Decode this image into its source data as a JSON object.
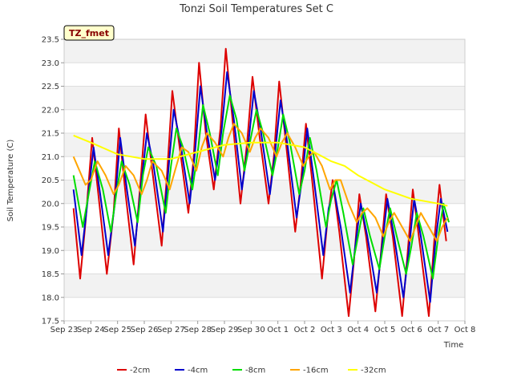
{
  "chart_data": {
    "type": "line",
    "title": "Tonzi Soil Temperatures Set C",
    "xlabel": "Time",
    "ylabel": "Soil Temperature (C)",
    "tag": "TZ_fmet",
    "ylim": [
      17.5,
      23.5
    ],
    "xlim": [
      0,
      15
    ],
    "x_ticks": [
      {
        "pos": 0,
        "label": "Sep 23"
      },
      {
        "pos": 1,
        "label": "Sep 24"
      },
      {
        "pos": 2,
        "label": "Sep 25"
      },
      {
        "pos": 3,
        "label": "Sep 26"
      },
      {
        "pos": 4,
        "label": "Sep 27"
      },
      {
        "pos": 5,
        "label": "Sep 28"
      },
      {
        "pos": 6,
        "label": "Sep 29"
      },
      {
        "pos": 7,
        "label": "Sep 30"
      },
      {
        "pos": 8,
        "label": "Oct 1"
      },
      {
        "pos": 9,
        "label": "Oct 2"
      },
      {
        "pos": 10,
        "label": "Oct 3"
      },
      {
        "pos": 11,
        "label": "Oct 4"
      },
      {
        "pos": 12,
        "label": "Oct 5"
      },
      {
        "pos": 13,
        "label": "Oct 6"
      },
      {
        "pos": 14,
        "label": "Oct 7"
      },
      {
        "pos": 15,
        "label": "Oct 8"
      }
    ],
    "y_ticks": [
      17.5,
      18.0,
      18.5,
      19.0,
      19.5,
      20.0,
      20.5,
      21.0,
      21.5,
      22.0,
      22.5,
      23.0,
      23.5
    ],
    "grid": true,
    "legend_position": "bottom",
    "series": [
      {
        "name": "-2cm",
        "color": "#dd0000",
        "points": [
          [
            0.35,
            19.9
          ],
          [
            0.6,
            18.4
          ],
          [
            0.8,
            19.6
          ],
          [
            1.05,
            21.4
          ],
          [
            1.3,
            20.1
          ],
          [
            1.6,
            18.5
          ],
          [
            1.85,
            19.8
          ],
          [
            2.05,
            21.6
          ],
          [
            2.3,
            20.2
          ],
          [
            2.6,
            18.7
          ],
          [
            2.85,
            20.4
          ],
          [
            3.05,
            21.9
          ],
          [
            3.3,
            20.7
          ],
          [
            3.65,
            19.1
          ],
          [
            3.85,
            20.6
          ],
          [
            4.05,
            22.4
          ],
          [
            4.3,
            21.3
          ],
          [
            4.65,
            19.8
          ],
          [
            4.85,
            21.0
          ],
          [
            5.05,
            23.0
          ],
          [
            5.3,
            21.5
          ],
          [
            5.6,
            20.3
          ],
          [
            5.85,
            21.6
          ],
          [
            6.05,
            23.3
          ],
          [
            6.3,
            21.8
          ],
          [
            6.6,
            20.0
          ],
          [
            6.85,
            21.3
          ],
          [
            7.05,
            22.7
          ],
          [
            7.3,
            21.5
          ],
          [
            7.65,
            20.0
          ],
          [
            7.85,
            21.0
          ],
          [
            8.05,
            22.6
          ],
          [
            8.3,
            21.3
          ],
          [
            8.65,
            19.4
          ],
          [
            8.85,
            20.4
          ],
          [
            9.05,
            21.7
          ],
          [
            9.3,
            20.4
          ],
          [
            9.65,
            18.4
          ],
          [
            9.85,
            19.6
          ],
          [
            10.05,
            20.5
          ],
          [
            10.3,
            19.4
          ],
          [
            10.65,
            17.6
          ],
          [
            10.85,
            18.8
          ],
          [
            11.05,
            20.2
          ],
          [
            11.3,
            19.3
          ],
          [
            11.65,
            17.7
          ],
          [
            11.85,
            18.9
          ],
          [
            12.05,
            20.2
          ],
          [
            12.3,
            19.3
          ],
          [
            12.65,
            17.6
          ],
          [
            12.85,
            18.9
          ],
          [
            13.05,
            20.3
          ],
          [
            13.3,
            19.2
          ],
          [
            13.65,
            17.6
          ],
          [
            13.85,
            19.2
          ],
          [
            14.05,
            20.4
          ],
          [
            14.3,
            19.2
          ]
        ]
      },
      {
        "name": "-4cm",
        "color": "#0000cc",
        "points": [
          [
            0.35,
            20.3
          ],
          [
            0.65,
            18.9
          ],
          [
            0.85,
            19.9
          ],
          [
            1.1,
            21.2
          ],
          [
            1.35,
            20.2
          ],
          [
            1.65,
            18.9
          ],
          [
            1.9,
            20.0
          ],
          [
            2.1,
            21.4
          ],
          [
            2.35,
            20.3
          ],
          [
            2.65,
            19.1
          ],
          [
            2.9,
            20.5
          ],
          [
            3.1,
            21.5
          ],
          [
            3.35,
            20.8
          ],
          [
            3.7,
            19.4
          ],
          [
            3.9,
            20.7
          ],
          [
            4.1,
            22.0
          ],
          [
            4.35,
            21.3
          ],
          [
            4.7,
            20.0
          ],
          [
            4.9,
            21.1
          ],
          [
            5.1,
            22.5
          ],
          [
            5.35,
            21.5
          ],
          [
            5.65,
            20.5
          ],
          [
            5.9,
            21.6
          ],
          [
            6.1,
            22.8
          ],
          [
            6.35,
            21.8
          ],
          [
            6.65,
            20.3
          ],
          [
            6.9,
            21.3
          ],
          [
            7.1,
            22.4
          ],
          [
            7.35,
            21.6
          ],
          [
            7.7,
            20.2
          ],
          [
            7.9,
            21.1
          ],
          [
            8.1,
            22.2
          ],
          [
            8.35,
            21.3
          ],
          [
            8.7,
            19.7
          ],
          [
            8.9,
            20.5
          ],
          [
            9.1,
            21.6
          ],
          [
            9.35,
            20.5
          ],
          [
            9.7,
            18.9
          ],
          [
            9.9,
            19.9
          ],
          [
            10.1,
            20.3
          ],
          [
            10.35,
            19.5
          ],
          [
            10.7,
            18.1
          ],
          [
            10.9,
            19.1
          ],
          [
            11.1,
            20.0
          ],
          [
            11.35,
            19.3
          ],
          [
            11.7,
            18.1
          ],
          [
            11.9,
            19.1
          ],
          [
            12.1,
            20.1
          ],
          [
            12.35,
            19.3
          ],
          [
            12.7,
            18.0
          ],
          [
            12.9,
            19.0
          ],
          [
            13.1,
            20.1
          ],
          [
            13.35,
            19.3
          ],
          [
            13.7,
            17.9
          ],
          [
            13.9,
            19.2
          ],
          [
            14.1,
            20.1
          ],
          [
            14.35,
            19.4
          ]
        ]
      },
      {
        "name": "-8cm",
        "color": "#00dd00",
        "points": [
          [
            0.35,
            20.6
          ],
          [
            0.7,
            19.5
          ],
          [
            0.95,
            20.3
          ],
          [
            1.15,
            20.9
          ],
          [
            1.45,
            20.3
          ],
          [
            1.75,
            19.4
          ],
          [
            1.95,
            20.2
          ],
          [
            2.15,
            20.9
          ],
          [
            2.45,
            20.4
          ],
          [
            2.75,
            19.6
          ],
          [
            2.95,
            20.6
          ],
          [
            3.15,
            21.2
          ],
          [
            3.45,
            20.8
          ],
          [
            3.8,
            19.8
          ],
          [
            4.0,
            20.8
          ],
          [
            4.2,
            21.6
          ],
          [
            4.45,
            21.2
          ],
          [
            4.8,
            20.3
          ],
          [
            5.0,
            21.1
          ],
          [
            5.2,
            22.1
          ],
          [
            5.45,
            21.5
          ],
          [
            5.75,
            20.6
          ],
          [
            5.95,
            21.5
          ],
          [
            6.2,
            22.3
          ],
          [
            6.45,
            21.8
          ],
          [
            6.75,
            20.7
          ],
          [
            6.95,
            21.3
          ],
          [
            7.2,
            22.0
          ],
          [
            7.45,
            21.5
          ],
          [
            7.8,
            20.6
          ],
          [
            8.0,
            21.2
          ],
          [
            8.2,
            21.9
          ],
          [
            8.45,
            21.3
          ],
          [
            8.8,
            20.2
          ],
          [
            9.0,
            20.7
          ],
          [
            9.2,
            21.4
          ],
          [
            9.45,
            20.7
          ],
          [
            9.8,
            19.5
          ],
          [
            10.0,
            20.1
          ],
          [
            10.2,
            20.5
          ],
          [
            10.45,
            19.8
          ],
          [
            10.8,
            18.7
          ],
          [
            11.0,
            19.3
          ],
          [
            11.2,
            19.9
          ],
          [
            11.45,
            19.3
          ],
          [
            11.8,
            18.6
          ],
          [
            12.0,
            19.3
          ],
          [
            12.2,
            19.9
          ],
          [
            12.45,
            19.3
          ],
          [
            12.8,
            18.5
          ],
          [
            13.0,
            19.1
          ],
          [
            13.2,
            19.8
          ],
          [
            13.45,
            19.3
          ],
          [
            13.8,
            18.4
          ],
          [
            14.0,
            19.3
          ],
          [
            14.2,
            20.0
          ],
          [
            14.4,
            19.6
          ]
        ]
      },
      {
        "name": "-16cm",
        "color": "#ffa500",
        "points": [
          [
            0.35,
            21.0
          ],
          [
            0.8,
            20.4
          ],
          [
            1.0,
            20.5
          ],
          [
            1.25,
            20.9
          ],
          [
            1.55,
            20.6
          ],
          [
            1.85,
            20.2
          ],
          [
            2.05,
            20.4
          ],
          [
            2.3,
            20.8
          ],
          [
            2.6,
            20.6
          ],
          [
            2.9,
            20.2
          ],
          [
            3.1,
            20.5
          ],
          [
            3.3,
            20.9
          ],
          [
            3.65,
            20.7
          ],
          [
            3.95,
            20.3
          ],
          [
            4.15,
            20.7
          ],
          [
            4.4,
            21.2
          ],
          [
            4.65,
            21.1
          ],
          [
            4.95,
            20.7
          ],
          [
            5.15,
            21.2
          ],
          [
            5.35,
            21.5
          ],
          [
            5.65,
            21.3
          ],
          [
            5.95,
            21.0
          ],
          [
            6.15,
            21.4
          ],
          [
            6.35,
            21.7
          ],
          [
            6.65,
            21.5
          ],
          [
            6.95,
            21.1
          ],
          [
            7.15,
            21.4
          ],
          [
            7.35,
            21.6
          ],
          [
            7.65,
            21.4
          ],
          [
            7.95,
            21.0
          ],
          [
            8.15,
            21.3
          ],
          [
            8.35,
            21.5
          ],
          [
            8.65,
            21.2
          ],
          [
            8.95,
            20.8
          ],
          [
            9.15,
            21.0
          ],
          [
            9.35,
            21.1
          ],
          [
            9.65,
            20.8
          ],
          [
            9.95,
            20.3
          ],
          [
            10.15,
            20.5
          ],
          [
            10.35,
            20.5
          ],
          [
            10.65,
            20.0
          ],
          [
            10.95,
            19.6
          ],
          [
            11.15,
            19.8
          ],
          [
            11.35,
            19.9
          ],
          [
            11.65,
            19.7
          ],
          [
            11.95,
            19.3
          ],
          [
            12.15,
            19.6
          ],
          [
            12.35,
            19.8
          ],
          [
            12.65,
            19.5
          ],
          [
            12.95,
            19.2
          ],
          [
            13.15,
            19.5
          ],
          [
            13.35,
            19.8
          ],
          [
            13.65,
            19.5
          ],
          [
            13.95,
            19.2
          ],
          [
            14.15,
            19.5
          ],
          [
            14.35,
            19.7
          ]
        ]
      },
      {
        "name": "-32cm",
        "color": "#ffff00",
        "points": [
          [
            0.35,
            21.45
          ],
          [
            1.0,
            21.3
          ],
          [
            2.0,
            21.05
          ],
          [
            3.0,
            20.95
          ],
          [
            4.0,
            20.95
          ],
          [
            5.0,
            21.1
          ],
          [
            6.0,
            21.25
          ],
          [
            7.0,
            21.3
          ],
          [
            8.0,
            21.3
          ],
          [
            8.5,
            21.25
          ],
          [
            9.0,
            21.2
          ],
          [
            9.5,
            21.05
          ],
          [
            10.0,
            20.9
          ],
          [
            10.5,
            20.8
          ],
          [
            11.0,
            20.6
          ],
          [
            11.5,
            20.45
          ],
          [
            12.0,
            20.3
          ],
          [
            12.5,
            20.2
          ],
          [
            13.0,
            20.1
          ],
          [
            13.5,
            20.05
          ],
          [
            14.0,
            20.0
          ],
          [
            14.35,
            19.95
          ]
        ]
      }
    ]
  }
}
